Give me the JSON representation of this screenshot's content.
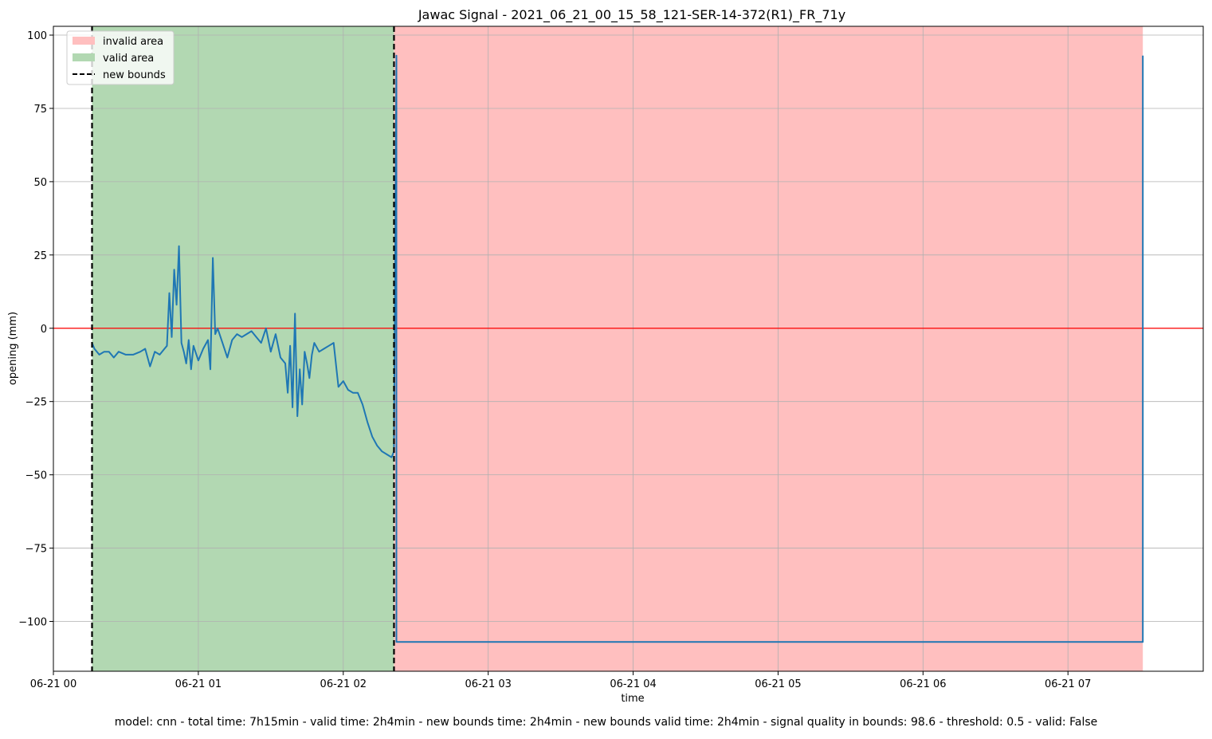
{
  "chart_data": {
    "type": "line",
    "title": "Jawac Signal - 2021_06_21_00_15_58_121-SER-14-372(R1)_FR_71y",
    "xlabel": "time",
    "ylabel": "opening (mm)",
    "xlim": [
      "2021-06-21 00:00",
      "2021-06-21 07:56"
    ],
    "ylim": [
      -117,
      103
    ],
    "grid": true,
    "legend_position": "upper left",
    "x_ticks": [
      "06-21 00",
      "06-21 01",
      "06-21 02",
      "06-21 03",
      "06-21 04",
      "06-21 05",
      "06-21 06",
      "06-21 07"
    ],
    "y_ticks": [
      100,
      75,
      50,
      25,
      0,
      -25,
      -50,
      -75,
      -100
    ],
    "y_tick_labels": [
      "100",
      "75",
      "50",
      "25",
      "0",
      "−25",
      "−50",
      "−75",
      "−100"
    ],
    "legend": [
      {
        "label": "invalid area",
        "kind": "patch",
        "color": "#ffbfbf"
      },
      {
        "label": "valid area",
        "kind": "patch",
        "color": "#b2d8b2"
      },
      {
        "label": "new bounds",
        "kind": "dashed",
        "color": "#000000"
      }
    ],
    "areas": [
      {
        "kind": "valid",
        "start": "2021-06-21 00:16",
        "end": "2021-06-21 02:21",
        "color": "#b2d8b2"
      },
      {
        "kind": "invalid",
        "start": "2021-06-21 02:21",
        "end": "2021-06-21 07:31",
        "color": "#ffbfbf"
      }
    ],
    "bounds": [
      "2021-06-21 00:16",
      "2021-06-21 02:21"
    ],
    "reference_line": {
      "y": 0,
      "color": "#ff0000"
    },
    "series": [
      {
        "color": "#1f77b4",
        "x": [
          "2021-06-21 00:16",
          "2021-06-21 00:17",
          "2021-06-21 00:19",
          "2021-06-21 00:21",
          "2021-06-21 00:23",
          "2021-06-21 00:25",
          "2021-06-21 00:27",
          "2021-06-21 00:30",
          "2021-06-21 00:33",
          "2021-06-21 00:36",
          "2021-06-21 00:38",
          "2021-06-21 00:40",
          "2021-06-21 00:42",
          "2021-06-21 00:44",
          "2021-06-21 00:46",
          "2021-06-21 00:47",
          "2021-06-21 00:48",
          "2021-06-21 00:49",
          "2021-06-21 00:50",
          "2021-06-21 00:51",
          "2021-06-21 00:52",
          "2021-06-21 00:53",
          "2021-06-21 00:54",
          "2021-06-21 00:55",
          "2021-06-21 00:56",
          "2021-06-21 00:57",
          "2021-06-21 00:58",
          "2021-06-21 01:00",
          "2021-06-21 01:02",
          "2021-06-21 01:04",
          "2021-06-21 01:05",
          "2021-06-21 01:06",
          "2021-06-21 01:07",
          "2021-06-21 01:08",
          "2021-06-21 01:10",
          "2021-06-21 01:12",
          "2021-06-21 01:14",
          "2021-06-21 01:16",
          "2021-06-21 01:18",
          "2021-06-21 01:20",
          "2021-06-21 01:22",
          "2021-06-21 01:24",
          "2021-06-21 01:26",
          "2021-06-21 01:28",
          "2021-06-21 01:30",
          "2021-06-21 01:32",
          "2021-06-21 01:34",
          "2021-06-21 01:36",
          "2021-06-21 01:37",
          "2021-06-21 01:38",
          "2021-06-21 01:39",
          "2021-06-21 01:40",
          "2021-06-21 01:41",
          "2021-06-21 01:42",
          "2021-06-21 01:43",
          "2021-06-21 01:44",
          "2021-06-21 01:45",
          "2021-06-21 01:46",
          "2021-06-21 01:47",
          "2021-06-21 01:48",
          "2021-06-21 01:50",
          "2021-06-21 01:52",
          "2021-06-21 01:54",
          "2021-06-21 01:56",
          "2021-06-21 01:58",
          "2021-06-21 02:00",
          "2021-06-21 02:02",
          "2021-06-21 02:04",
          "2021-06-21 02:06",
          "2021-06-21 02:08",
          "2021-06-21 02:10",
          "2021-06-21 02:12",
          "2021-06-21 02:14",
          "2021-06-21 02:16",
          "2021-06-21 02:18",
          "2021-06-21 02:20",
          "2021-06-21 02:21",
          "2021-06-21 02:22",
          "2021-06-21 02:22",
          "2021-06-21 07:31",
          "2021-06-21 07:31"
        ],
        "y": [
          -5,
          -7,
          -9,
          -8,
          -8,
          -10,
          -8,
          -9,
          -9,
          -8,
          -7,
          -13,
          -8,
          -9,
          -7,
          -6,
          12,
          -3,
          20,
          8,
          28,
          -5,
          -8,
          -12,
          -4,
          -14,
          -6,
          -11,
          -7,
          -4,
          -14,
          24,
          -2,
          0,
          -5,
          -10,
          -4,
          -2,
          -3,
          -2,
          -1,
          -3,
          -5,
          0,
          -8,
          -2,
          -10,
          -12,
          -22,
          -6,
          -27,
          5,
          -30,
          -14,
          -26,
          -8,
          -12,
          -17,
          -9,
          -5,
          -8,
          -7,
          -6,
          -5,
          -20,
          -18,
          -21,
          -22,
          -22,
          -26,
          -32,
          -37,
          -40,
          -42,
          -43,
          -44,
          -42,
          93,
          -107,
          -107,
          93
        ]
      }
    ]
  },
  "footer": {
    "text": "model: cnn - total time: 7h15min - valid time: 2h4min - new bounds time: 2h4min - new bounds valid time: 2h4min - signal quality in bounds: 98.6 - threshold: 0.5 - valid: False"
  }
}
